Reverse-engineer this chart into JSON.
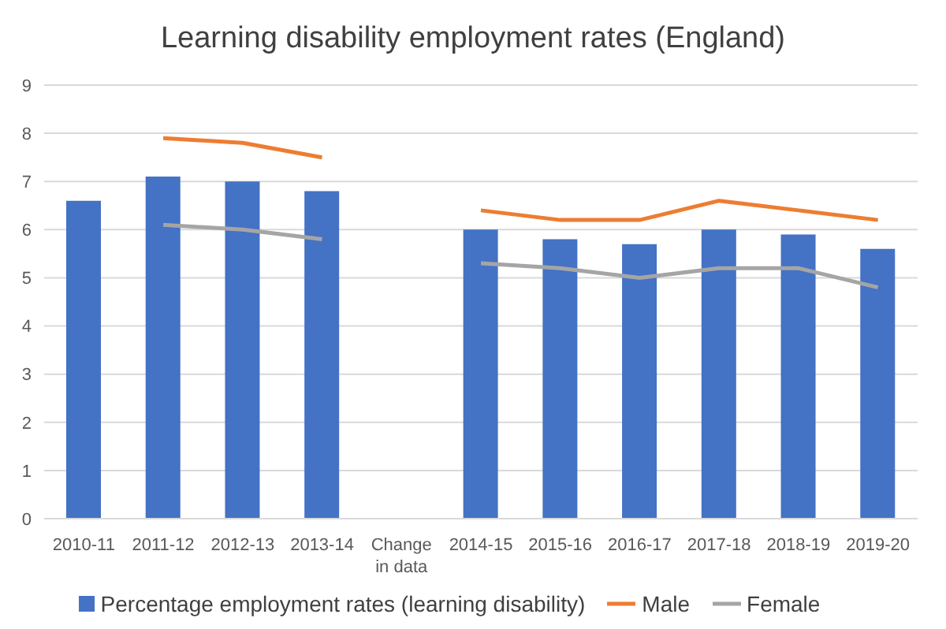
{
  "chart_data": {
    "type": "bar",
    "title": "Learning disability employment rates (England)",
    "categories": [
      "2010-11",
      "2011-12",
      "2012-13",
      "2013-14",
      "Change in data",
      "2014-15",
      "2015-16",
      "2016-17",
      "2017-18",
      "2018-19",
      "2019-20"
    ],
    "series": [
      {
        "name": "Percentage employment rates (learning disability)",
        "color": "#4472c4",
        "values": [
          6.6,
          7.1,
          7.0,
          6.8,
          null,
          6.0,
          5.8,
          5.7,
          6.0,
          5.9,
          5.6
        ]
      },
      {
        "name": "Male",
        "type": "line",
        "color": "#ed7d31",
        "values": [
          null,
          7.9,
          7.8,
          7.5,
          null,
          6.4,
          6.2,
          6.2,
          6.6,
          6.4,
          6.2
        ]
      },
      {
        "name": "Female",
        "type": "line",
        "color": "#a5a5a5",
        "values": [
          null,
          6.1,
          6.0,
          5.8,
          null,
          5.3,
          5.2,
          5.0,
          5.2,
          5.2,
          4.8
        ]
      }
    ],
    "ylim": [
      0,
      9
    ],
    "yticks": [
      0,
      1,
      2,
      3,
      4,
      5,
      6,
      7,
      8,
      9
    ],
    "grid": "y",
    "legend": "bottom",
    "marker": "none",
    "line_style": "solid"
  }
}
